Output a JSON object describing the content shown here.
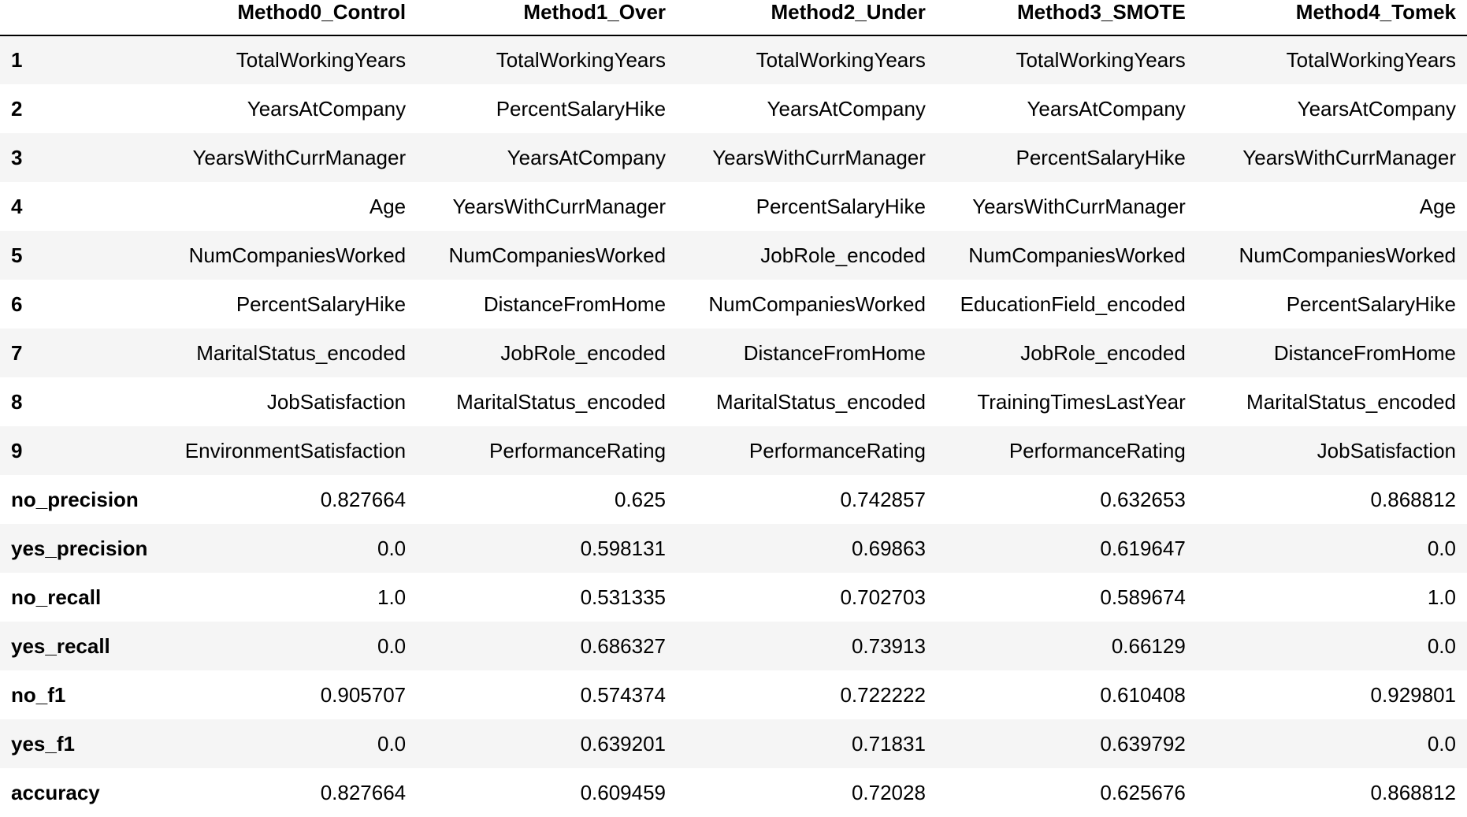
{
  "table": {
    "index_header": "",
    "columns": [
      "Method0_Control",
      "Method1_Over",
      "Method2_Under",
      "Method3_SMOTE",
      "Method4_Tomek"
    ],
    "rows": [
      {
        "index": "1",
        "cells": [
          "TotalWorkingYears",
          "TotalWorkingYears",
          "TotalWorkingYears",
          "TotalWorkingYears",
          "TotalWorkingYears"
        ]
      },
      {
        "index": "2",
        "cells": [
          "YearsAtCompany",
          "PercentSalaryHike",
          "YearsAtCompany",
          "YearsAtCompany",
          "YearsAtCompany"
        ]
      },
      {
        "index": "3",
        "cells": [
          "YearsWithCurrManager",
          "YearsAtCompany",
          "YearsWithCurrManager",
          "PercentSalaryHike",
          "YearsWithCurrManager"
        ]
      },
      {
        "index": "4",
        "cells": [
          "Age",
          "YearsWithCurrManager",
          "PercentSalaryHike",
          "YearsWithCurrManager",
          "Age"
        ]
      },
      {
        "index": "5",
        "cells": [
          "NumCompaniesWorked",
          "NumCompaniesWorked",
          "JobRole_encoded",
          "NumCompaniesWorked",
          "NumCompaniesWorked"
        ]
      },
      {
        "index": "6",
        "cells": [
          "PercentSalaryHike",
          "DistanceFromHome",
          "NumCompaniesWorked",
          "EducationField_encoded",
          "PercentSalaryHike"
        ]
      },
      {
        "index": "7",
        "cells": [
          "MaritalStatus_encoded",
          "JobRole_encoded",
          "DistanceFromHome",
          "JobRole_encoded",
          "DistanceFromHome"
        ]
      },
      {
        "index": "8",
        "cells": [
          "JobSatisfaction",
          "MaritalStatus_encoded",
          "MaritalStatus_encoded",
          "TrainingTimesLastYear",
          "MaritalStatus_encoded"
        ]
      },
      {
        "index": "9",
        "cells": [
          "EnvironmentSatisfaction",
          "PerformanceRating",
          "PerformanceRating",
          "PerformanceRating",
          "JobSatisfaction"
        ]
      },
      {
        "index": "no_precision",
        "cells": [
          "0.827664",
          "0.625",
          "0.742857",
          "0.632653",
          "0.868812"
        ]
      },
      {
        "index": "yes_precision",
        "cells": [
          "0.0",
          "0.598131",
          "0.69863",
          "0.619647",
          "0.0"
        ]
      },
      {
        "index": "no_recall",
        "cells": [
          "1.0",
          "0.531335",
          "0.702703",
          "0.589674",
          "1.0"
        ]
      },
      {
        "index": "yes_recall",
        "cells": [
          "0.0",
          "0.686327",
          "0.73913",
          "0.66129",
          "0.0"
        ]
      },
      {
        "index": "no_f1",
        "cells": [
          "0.905707",
          "0.574374",
          "0.722222",
          "0.610408",
          "0.929801"
        ]
      },
      {
        "index": "yes_f1",
        "cells": [
          "0.0",
          "0.639201",
          "0.71831",
          "0.639792",
          "0.0"
        ]
      },
      {
        "index": "accuracy",
        "cells": [
          "0.827664",
          "0.609459",
          "0.72028",
          "0.625676",
          "0.868812"
        ]
      }
    ]
  }
}
